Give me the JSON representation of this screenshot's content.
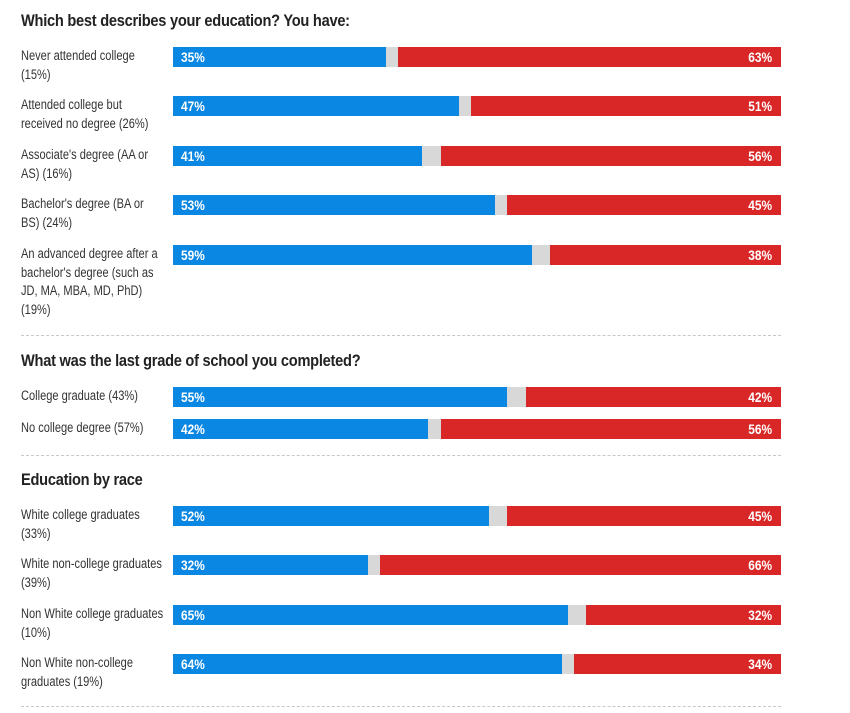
{
  "chart_data": {
    "type": "bar",
    "stacked": true,
    "orientation": "horizontal",
    "series_colors": {
      "dem": "#0a87e3",
      "other": "#d8d8d8",
      "rep": "#d92727"
    },
    "sections": [
      {
        "title": "Which best describes your education? You have:",
        "rows": [
          {
            "label": "Never attended college (15%)",
            "dem": 35,
            "rep": 63
          },
          {
            "label": "Attended college but received no degree (26%)",
            "dem": 47,
            "rep": 51
          },
          {
            "label": "Associate's degree (AA or AS) (16%)",
            "dem": 41,
            "rep": 56
          },
          {
            "label": "Bachelor's degree (BA or BS) (24%)",
            "dem": 53,
            "rep": 45
          },
          {
            "label": "An advanced degree after a bachelor's degree (such as JD, MA, MBA, MD, PhD) (19%)",
            "dem": 59,
            "rep": 38
          }
        ]
      },
      {
        "title": "What was the last grade of school you completed?",
        "rows": [
          {
            "label": "College graduate (43%)",
            "dem": 55,
            "rep": 42
          },
          {
            "label": "No college degree (57%)",
            "dem": 42,
            "rep": 56
          }
        ]
      },
      {
        "title": "Education by race",
        "rows": [
          {
            "label": "White college graduates (33%)",
            "dem": 52,
            "rep": 45
          },
          {
            "label": "White non-college graduates (39%)",
            "dem": 32,
            "rep": 66
          },
          {
            "label": "Non White college graduates (10%)",
            "dem": 65,
            "rep": 32
          },
          {
            "label": "Non White non-college graduates (19%)",
            "dem": 64,
            "rep": 34
          }
        ]
      }
    ]
  }
}
